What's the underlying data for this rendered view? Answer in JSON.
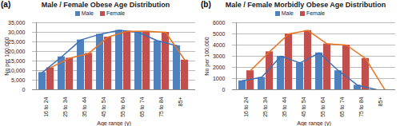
{
  "chart_data": [
    {
      "type": "bar",
      "title": "Male / Female Obese Age Distribution",
      "annotations": [
        "(a)"
      ],
      "x_label": "Age range (y)",
      "y_label": "No per 100,000",
      "categories": [
        "16 to 24",
        "25 to 34",
        "35 to 44",
        "45 to 54",
        "55 to 64",
        "65 to 74",
        "75 to 84",
        "85+"
      ],
      "series": [
        {
          "name": "Male",
          "color": "#4f81bd",
          "values": [
            9000,
            17200,
            26000,
            29000,
            31000,
            30000,
            25500,
            23000
          ]
        },
        {
          "name": "Female",
          "color": "#c0504d",
          "values": [
            11500,
            16500,
            19000,
            27500,
            30500,
            30500,
            30000,
            15500
          ]
        }
      ],
      "ylim": [
        0,
        35000
      ],
      "yticks": [
        0,
        {
          "value": 5000,
          "label": "5,000"
        },
        {
          "value": 10000,
          "label": "10,000"
        },
        {
          "value": 15000,
          "label": "15,000"
        },
        {
          "value": 20000,
          "label": "20,000"
        },
        {
          "value": 25000,
          "label": "25,000"
        },
        {
          "value": 30000,
          "label": "30,000"
        },
        {
          "value": 35000,
          "label": "35,000"
        }
      ],
      "grid": true,
      "legend": "top"
    },
    {
      "type": "bar",
      "title": "Male / Female Morbidly Obese Age Distribution",
      "annotations": [
        "(b)"
      ],
      "x_label": "Age range (y)",
      "y_label": "No per 100,000",
      "categories": [
        "16 to 24",
        "25 to 34",
        "35 to 44",
        "45 to 54",
        "55 to 64",
        "65 to 74",
        "75 to 84",
        "85+"
      ],
      "series": [
        {
          "name": "Male",
          "color": "#4f81bd",
          "values": [
            800,
            1100,
            3000,
            2400,
            3300,
            1700,
            400,
            0
          ]
        },
        {
          "name": "Female",
          "color": "#c0504d",
          "values": [
            1700,
            3400,
            5000,
            5300,
            4100,
            4000,
            2800,
            0
          ]
        }
      ],
      "ylim": [
        0,
        6000
      ],
      "yticks": [
        0,
        1000,
        2000,
        3000,
        4000,
        5000,
        6000
      ],
      "grid": true,
      "legend": "top"
    }
  ]
}
